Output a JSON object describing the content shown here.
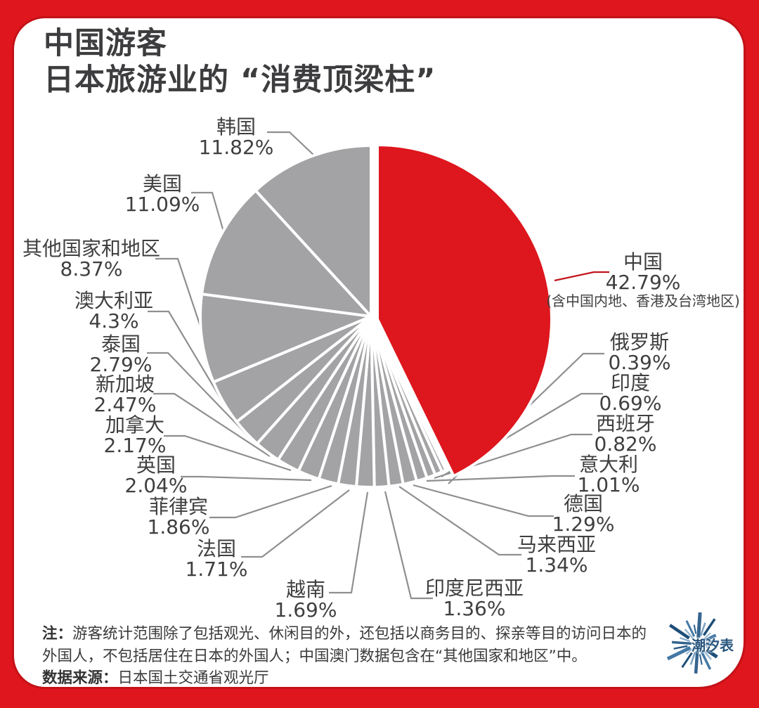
{
  "header": {
    "title_line1": "中国游客",
    "title_line2": "日本旅游业的 “消费顶梁柱”"
  },
  "chart_data": {
    "type": "pie",
    "title": "中国游客 日本旅游业的“消费顶梁柱”",
    "unit": "percent",
    "start_angle_deg": 0,
    "direction": "clockwise",
    "legend_position": "none",
    "highlight_color": "#de161d",
    "default_color": "#a3a3a5",
    "separator_color": "#ffffff",
    "leader_line_color": "#8f8f91",
    "highlight_leader_color": "#c3161c",
    "slices": [
      {
        "id": "china",
        "label": "中国",
        "value": 42.79,
        "display": "42.79%",
        "sublabel": "(含中国内地、香港及台湾地区)",
        "color": "#de161d",
        "highlight": true
      },
      {
        "id": "russia",
        "label": "俄罗斯",
        "value": 0.39,
        "display": "0.39%"
      },
      {
        "id": "india",
        "label": "印度",
        "value": 0.69,
        "display": "0.69%"
      },
      {
        "id": "spain",
        "label": "西班牙",
        "value": 0.82,
        "display": "0.82%"
      },
      {
        "id": "italy",
        "label": "意大利",
        "value": 1.01,
        "display": "1.01%"
      },
      {
        "id": "germany",
        "label": "德国",
        "value": 1.29,
        "display": "1.29%"
      },
      {
        "id": "malaysia",
        "label": "马来西亚",
        "value": 1.34,
        "display": "1.34%"
      },
      {
        "id": "indonesia",
        "label": "印度尼西亚",
        "value": 1.36,
        "display": "1.36%"
      },
      {
        "id": "vietnam",
        "label": "越南",
        "value": 1.69,
        "display": "1.69%"
      },
      {
        "id": "france",
        "label": "法国",
        "value": 1.71,
        "display": "1.71%"
      },
      {
        "id": "philippines",
        "label": "菲律宾",
        "value": 1.86,
        "display": "1.86%"
      },
      {
        "id": "uk",
        "label": "英国",
        "value": 2.04,
        "display": "2.04%"
      },
      {
        "id": "canada",
        "label": "加拿大",
        "value": 2.17,
        "display": "2.17%"
      },
      {
        "id": "singapore",
        "label": "新加坡",
        "value": 2.47,
        "display": "2.47%"
      },
      {
        "id": "thailand",
        "label": "泰国",
        "value": 2.79,
        "display": "2.79%"
      },
      {
        "id": "australia",
        "label": "澳大利亚",
        "value": 4.3,
        "display": "4.3%"
      },
      {
        "id": "others",
        "label": "其他国家和地区",
        "value": 8.37,
        "display": "8.37%"
      },
      {
        "id": "usa",
        "label": "美国",
        "value": 11.09,
        "display": "11.09%"
      },
      {
        "id": "korea",
        "label": "韩国",
        "value": 11.82,
        "display": "11.82%"
      }
    ]
  },
  "notes": {
    "prefix": "注：",
    "line1": "游客统计范围除了包括观光、休闲目的外，还包括以商务目的、探亲等目的访问日本的",
    "line2": "外国人，不包括居住在日本的外国人；中国澳门数据包含在“其他国家和地区”中。",
    "source_label": "数据来源：",
    "source_text": "日本国土交通省观光厅"
  },
  "logo": {
    "text": "潮汐表"
  }
}
